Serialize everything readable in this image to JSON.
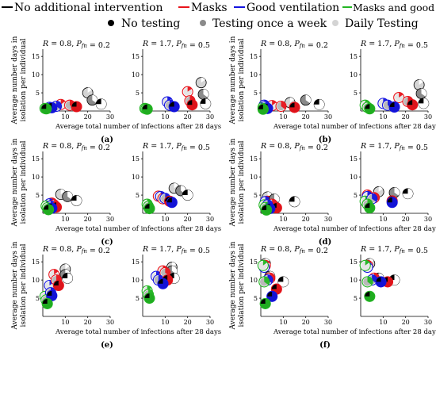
{
  "legend": {
    "lines": [
      {
        "label": "No additional intervention",
        "color": "#000000"
      },
      {
        "label": "Masks",
        "color": "#e8141b"
      },
      {
        "label": "Good ventilation",
        "color": "#1414e0"
      },
      {
        "label": "Masks and good ventilation",
        "color": "#22b522"
      }
    ],
    "testing": [
      {
        "label": "No testing",
        "shade": "#000000"
      },
      {
        "label": "Testing once a week",
        "shade": "#8a8a8a"
      },
      {
        "label": "Daily Testing",
        "shade": "#d4d4d4"
      }
    ]
  },
  "common": {
    "ylabel_line1": "Average number days in",
    "ylabel_line2": "isolation per individual",
    "xlabel": "Average total number of infections after 28 days",
    "xticks": [
      "10",
      "20",
      "30"
    ],
    "yticks": [
      "5",
      "10",
      "15"
    ],
    "xlim": [
      0,
      30
    ],
    "ylim": [
      0,
      17
    ],
    "subtitle_left": {
      "R": "0.8",
      "P": "0.2"
    },
    "subtitle_right": {
      "R": "1.7",
      "P": "0.5"
    }
  },
  "chart_data": [
    {
      "type": "scatter",
      "label": "(a)",
      "left": [
        {
          "s": "none",
          "t": "none",
          "x": 26,
          "y": 1.9
        },
        {
          "s": "none",
          "t": "weekly",
          "x": 22,
          "y": 3.0
        },
        {
          "s": "none",
          "t": "daily",
          "x": 20,
          "y": 5.0
        },
        {
          "s": "masks",
          "t": "none",
          "x": 15,
          "y": 1.2
        },
        {
          "s": "masks",
          "t": "weekly",
          "x": 12,
          "y": 1.6
        },
        {
          "s": "masks",
          "t": "daily",
          "x": 8,
          "y": 1.8
        },
        {
          "s": "vent",
          "t": "none",
          "x": 4,
          "y": 0.9
        },
        {
          "s": "vent",
          "t": "weekly",
          "x": 6,
          "y": 1.3
        },
        {
          "s": "vent",
          "t": "daily",
          "x": 3,
          "y": 1.0
        },
        {
          "s": "both",
          "t": "none",
          "x": 1.5,
          "y": 0.6
        },
        {
          "s": "both",
          "t": "weekly",
          "x": 2,
          "y": 0.7
        },
        {
          "s": "both",
          "t": "daily",
          "x": 1,
          "y": 0.7
        }
      ],
      "right": [
        {
          "s": "none",
          "t": "none",
          "x": 28,
          "y": 2.0
        },
        {
          "s": "none",
          "t": "weekly",
          "x": 27,
          "y": 4.6
        },
        {
          "s": "none",
          "t": "daily",
          "x": 26,
          "y": 7.8
        },
        {
          "s": "masks",
          "t": "none",
          "x": 22,
          "y": 1.7
        },
        {
          "s": "masks",
          "t": "weekly",
          "x": 21,
          "y": 2.8
        },
        {
          "s": "masks",
          "t": "daily",
          "x": 20,
          "y": 5.3
        },
        {
          "s": "vent",
          "t": "none",
          "x": 14,
          "y": 1.2
        },
        {
          "s": "vent",
          "t": "weekly",
          "x": 12,
          "y": 1.6
        },
        {
          "s": "vent",
          "t": "daily",
          "x": 11,
          "y": 2.5
        },
        {
          "s": "both",
          "t": "none",
          "x": 2,
          "y": 0.5
        },
        {
          "s": "both",
          "t": "weekly",
          "x": 1.5,
          "y": 0.6
        },
        {
          "s": "both",
          "t": "daily",
          "x": 1,
          "y": 0.7
        }
      ]
    },
    {
      "type": "scatter",
      "label": "(b)",
      "left": [
        {
          "s": "none",
          "t": "none",
          "x": 26,
          "y": 1.8
        },
        {
          "s": "none",
          "t": "weekly",
          "x": 20,
          "y": 3.0
        },
        {
          "s": "none",
          "t": "daily",
          "x": 13,
          "y": 2.3
        },
        {
          "s": "masks",
          "t": "none",
          "x": 15,
          "y": 1.0
        },
        {
          "s": "masks",
          "t": "weekly",
          "x": 9,
          "y": 1.3
        },
        {
          "s": "masks",
          "t": "daily",
          "x": 5,
          "y": 1.5
        },
        {
          "s": "vent",
          "t": "none",
          "x": 3,
          "y": 0.7
        },
        {
          "s": "vent",
          "t": "weekly",
          "x": 2,
          "y": 1.2
        },
        {
          "s": "vent",
          "t": "daily",
          "x": 1.5,
          "y": 1.6
        },
        {
          "s": "both",
          "t": "none",
          "x": 1,
          "y": 0.5
        },
        {
          "s": "both",
          "t": "weekly",
          "x": 1.5,
          "y": 0.7
        },
        {
          "s": "both",
          "t": "daily",
          "x": 1,
          "y": 1.0
        }
      ],
      "right": [
        {
          "s": "none",
          "t": "none",
          "x": 28,
          "y": 2.1
        },
        {
          "s": "none",
          "t": "weekly",
          "x": 27,
          "y": 4.8
        },
        {
          "s": "none",
          "t": "daily",
          "x": 26,
          "y": 7.2
        },
        {
          "s": "masks",
          "t": "none",
          "x": 23,
          "y": 1.7
        },
        {
          "s": "masks",
          "t": "weekly",
          "x": 21,
          "y": 2.6
        },
        {
          "s": "masks",
          "t": "daily",
          "x": 17,
          "y": 3.7
        },
        {
          "s": "vent",
          "t": "none",
          "x": 15,
          "y": 1.1
        },
        {
          "s": "vent",
          "t": "weekly",
          "x": 12,
          "y": 1.6
        },
        {
          "s": "vent",
          "t": "daily",
          "x": 10,
          "y": 2.1
        },
        {
          "s": "both",
          "t": "none",
          "x": 4,
          "y": 0.6
        },
        {
          "s": "both",
          "t": "weekly",
          "x": 3,
          "y": 1.0
        },
        {
          "s": "both",
          "t": "daily",
          "x": 2,
          "y": 1.6
        }
      ]
    },
    {
      "type": "scatter",
      "label": "(c)",
      "left": [
        {
          "s": "none",
          "t": "none",
          "x": 15,
          "y": 3.5
        },
        {
          "s": "none",
          "t": "weekly",
          "x": 11,
          "y": 4.6
        },
        {
          "s": "none",
          "t": "daily",
          "x": 8,
          "y": 5.2
        },
        {
          "s": "masks",
          "t": "none",
          "x": 6,
          "y": 1.7
        },
        {
          "s": "masks",
          "t": "weekly",
          "x": 5,
          "y": 2.3
        },
        {
          "s": "masks",
          "t": "daily",
          "x": 4,
          "y": 2.8
        },
        {
          "s": "vent",
          "t": "none",
          "x": 4,
          "y": 1.4
        },
        {
          "s": "vent",
          "t": "weekly",
          "x": 3.5,
          "y": 2.0
        },
        {
          "s": "vent",
          "t": "daily",
          "x": 3,
          "y": 2.6
        },
        {
          "s": "both",
          "t": "none",
          "x": 2.5,
          "y": 1.0
        },
        {
          "s": "both",
          "t": "weekly",
          "x": 2,
          "y": 1.5
        },
        {
          "s": "both",
          "t": "daily",
          "x": 1.5,
          "y": 2.0
        }
      ],
      "right": [
        {
          "s": "none",
          "t": "none",
          "x": 20,
          "y": 5.0
        },
        {
          "s": "none",
          "t": "weekly",
          "x": 17,
          "y": 6.2
        },
        {
          "s": "none",
          "t": "daily",
          "x": 14,
          "y": 6.9
        },
        {
          "s": "masks",
          "t": "none",
          "x": 12,
          "y": 3.3
        },
        {
          "s": "masks",
          "t": "weekly",
          "x": 9,
          "y": 4.0
        },
        {
          "s": "masks",
          "t": "daily",
          "x": 7,
          "y": 4.7
        },
        {
          "s": "vent",
          "t": "none",
          "x": 13,
          "y": 3.0
        },
        {
          "s": "vent",
          "t": "weekly",
          "x": 10,
          "y": 4.1
        },
        {
          "s": "vent",
          "t": "daily",
          "x": 8,
          "y": 4.6
        },
        {
          "s": "both",
          "t": "none",
          "x": 3,
          "y": 1.3
        },
        {
          "s": "both",
          "t": "weekly",
          "x": 2.5,
          "y": 1.9
        },
        {
          "s": "both",
          "t": "daily",
          "x": 2,
          "y": 2.5
        }
      ]
    },
    {
      "type": "scatter",
      "label": "(d)",
      "left": [
        {
          "s": "none",
          "t": "none",
          "x": 15,
          "y": 3.2
        },
        {
          "s": "none",
          "t": "weekly",
          "x": 6,
          "y": 3.9
        },
        {
          "s": "none",
          "t": "daily",
          "x": 3,
          "y": 4.5
        },
        {
          "s": "masks",
          "t": "none",
          "x": 7,
          "y": 1.5
        },
        {
          "s": "masks",
          "t": "weekly",
          "x": 5,
          "y": 2.5
        },
        {
          "s": "masks",
          "t": "daily",
          "x": 3,
          "y": 3.3
        },
        {
          "s": "vent",
          "t": "none",
          "x": 4,
          "y": 1.3
        },
        {
          "s": "vent",
          "t": "weekly",
          "x": 3,
          "y": 2.3
        },
        {
          "s": "vent",
          "t": "daily",
          "x": 2,
          "y": 3.2
        },
        {
          "s": "both",
          "t": "none",
          "x": 2.5,
          "y": 0.9
        },
        {
          "s": "both",
          "t": "weekly",
          "x": 2,
          "y": 1.6
        },
        {
          "s": "both",
          "t": "daily",
          "x": 1.5,
          "y": 2.3
        }
      ],
      "right": [
        {
          "s": "none",
          "t": "none",
          "x": 21,
          "y": 5.4
        },
        {
          "s": "none",
          "t": "weekly",
          "x": 15,
          "y": 5.7
        },
        {
          "s": "none",
          "t": "daily",
          "x": 8,
          "y": 5.9
        },
        {
          "s": "masks",
          "t": "none",
          "x": 14,
          "y": 3.4
        },
        {
          "s": "masks",
          "t": "weekly",
          "x": 6,
          "y": 4.3
        },
        {
          "s": "masks",
          "t": "daily",
          "x": 3,
          "y": 5.0
        },
        {
          "s": "vent",
          "t": "none",
          "x": 14,
          "y": 3.0
        },
        {
          "s": "vent",
          "t": "weekly",
          "x": 5,
          "y": 4.0
        },
        {
          "s": "vent",
          "t": "daily",
          "x": 3,
          "y": 4.6
        },
        {
          "s": "both",
          "t": "none",
          "x": 4,
          "y": 1.5
        },
        {
          "s": "both",
          "t": "weekly",
          "x": 3,
          "y": 2.5
        },
        {
          "s": "both",
          "t": "daily",
          "x": 2,
          "y": 3.3
        }
      ]
    },
    {
      "type": "scatter",
      "label": "(e)",
      "left": [
        {
          "s": "none",
          "t": "none",
          "x": 11,
          "y": 10.5
        },
        {
          "s": "none",
          "t": "weekly",
          "x": 10,
          "y": 11.5
        },
        {
          "s": "none",
          "t": "daily",
          "x": 10,
          "y": 13.0
        },
        {
          "s": "masks",
          "t": "none",
          "x": 7,
          "y": 8.5
        },
        {
          "s": "masks",
          "t": "weekly",
          "x": 6,
          "y": 10.0
        },
        {
          "s": "masks",
          "t": "daily",
          "x": 5,
          "y": 11.5
        },
        {
          "s": "vent",
          "t": "none",
          "x": 4,
          "y": 5.7
        },
        {
          "s": "vent",
          "t": "weekly",
          "x": 3.5,
          "y": 6.5
        },
        {
          "s": "vent",
          "t": "daily",
          "x": 3,
          "y": 8.5
        },
        {
          "s": "both",
          "t": "none",
          "x": 2,
          "y": 3.5
        },
        {
          "s": "both",
          "t": "weekly",
          "x": 1.5,
          "y": 4.5
        },
        {
          "s": "both",
          "t": "daily",
          "x": 1,
          "y": 5.5
        }
      ],
      "right": [
        {
          "s": "none",
          "t": "none",
          "x": 14,
          "y": 10.5
        },
        {
          "s": "none",
          "t": "weekly",
          "x": 13,
          "y": 12.5
        },
        {
          "s": "none",
          "t": "daily",
          "x": 13,
          "y": 13.5
        },
        {
          "s": "masks",
          "t": "none",
          "x": 11,
          "y": 10.0
        },
        {
          "s": "masks",
          "t": "weekly",
          "x": 10,
          "y": 12.0
        },
        {
          "s": "masks",
          "t": "daily",
          "x": 9,
          "y": 12.5
        },
        {
          "s": "vent",
          "t": "none",
          "x": 9,
          "y": 9.0
        },
        {
          "s": "vent",
          "t": "weekly",
          "x": 7,
          "y": 10.0
        },
        {
          "s": "vent",
          "t": "daily",
          "x": 6,
          "y": 11.0
        },
        {
          "s": "both",
          "t": "none",
          "x": 3,
          "y": 5.0
        },
        {
          "s": "both",
          "t": "weekly",
          "x": 2.5,
          "y": 6.0
        },
        {
          "s": "both",
          "t": "daily",
          "x": 2,
          "y": 7.0
        }
      ]
    },
    {
      "type": "scatter",
      "label": "(f)",
      "left": [
        {
          "s": "none",
          "t": "none",
          "x": 10,
          "y": 9.5
        },
        {
          "s": "none",
          "t": "weekly",
          "x": 4,
          "y": 11.0
        },
        {
          "s": "none",
          "t": "daily",
          "x": 2,
          "y": 14.5
        },
        {
          "s": "masks",
          "t": "none",
          "x": 7,
          "y": 7.5
        },
        {
          "s": "masks",
          "t": "weekly",
          "x": 4,
          "y": 10.5
        },
        {
          "s": "masks",
          "t": "daily",
          "x": 2,
          "y": 14.0
        },
        {
          "s": "vent",
          "t": "none",
          "x": 5,
          "y": 5.5
        },
        {
          "s": "vent",
          "t": "weekly",
          "x": 3,
          "y": 10.0
        },
        {
          "s": "vent",
          "t": "daily",
          "x": 1.5,
          "y": 13.5
        },
        {
          "s": "both",
          "t": "none",
          "x": 2,
          "y": 3.5
        },
        {
          "s": "both",
          "t": "weekly",
          "x": 1.5,
          "y": 9.5
        },
        {
          "s": "both",
          "t": "daily",
          "x": 1,
          "y": 14.0
        }
      ],
      "right": [
        {
          "s": "none",
          "t": "none",
          "x": 15,
          "y": 10.0
        },
        {
          "s": "none",
          "t": "weekly",
          "x": 8,
          "y": 10.5
        },
        {
          "s": "none",
          "t": "daily",
          "x": 4,
          "y": 14.5
        },
        {
          "s": "masks",
          "t": "none",
          "x": 12,
          "y": 9.5
        },
        {
          "s": "masks",
          "t": "weekly",
          "x": 6,
          "y": 10.5
        },
        {
          "s": "masks",
          "t": "daily",
          "x": 3,
          "y": 14.0
        },
        {
          "s": "vent",
          "t": "none",
          "x": 9,
          "y": 9.5
        },
        {
          "s": "vent",
          "t": "weekly",
          "x": 5,
          "y": 10.0
        },
        {
          "s": "vent",
          "t": "daily",
          "x": 3,
          "y": 13.5
        },
        {
          "s": "both",
          "t": "none",
          "x": 4,
          "y": 5.5
        },
        {
          "s": "both",
          "t": "weekly",
          "x": 3,
          "y": 9.5
        },
        {
          "s": "both",
          "t": "daily",
          "x": 2,
          "y": 14.0
        }
      ]
    }
  ]
}
